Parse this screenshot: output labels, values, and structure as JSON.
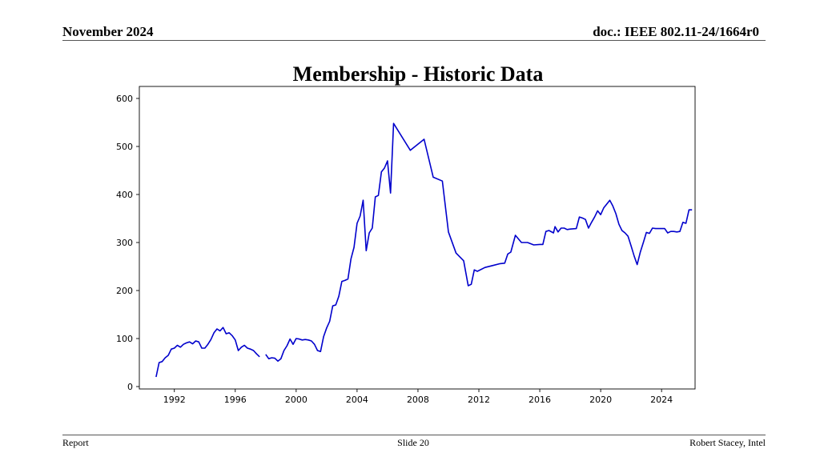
{
  "header": {
    "date": "November 2024",
    "doc_id": "doc.: IEEE 802.11-24/1664r0"
  },
  "slide_title": "Membership - Historic Data",
  "footer": {
    "left": "Report",
    "center": "Slide 20",
    "right": "Robert Stacey, Intel"
  },
  "colors": {
    "line": "#0000cc"
  },
  "chart_data": {
    "type": "line",
    "title": "",
    "xlabel": "",
    "ylabel": "",
    "xlim": [
      1989.7,
      2026.2
    ],
    "ylim": [
      -5,
      625
    ],
    "xticks": [
      1992,
      1996,
      2000,
      2004,
      2008,
      2012,
      2016,
      2020,
      2024
    ],
    "yticks": [
      0,
      100,
      200,
      300,
      400,
      500,
      600
    ],
    "grid": false,
    "series": [
      {
        "name": "",
        "segments": [
          [
            [
              1990.8,
              20
            ],
            [
              1991.0,
              50
            ],
            [
              1991.2,
              52
            ],
            [
              1991.4,
              60
            ],
            [
              1991.6,
              65
            ],
            [
              1991.8,
              78
            ],
            [
              1992.0,
              80
            ],
            [
              1992.2,
              86
            ],
            [
              1992.4,
              82
            ],
            [
              1992.6,
              88
            ],
            [
              1992.8,
              91
            ],
            [
              1993.0,
              93
            ],
            [
              1993.2,
              89
            ],
            [
              1993.4,
              95
            ],
            [
              1993.6,
              93
            ],
            [
              1993.8,
              80
            ],
            [
              1994.0,
              80
            ],
            [
              1994.2,
              88
            ],
            [
              1994.4,
              98
            ],
            [
              1994.6,
              112
            ],
            [
              1994.8,
              120
            ],
            [
              1995.0,
              116
            ],
            [
              1995.2,
              123
            ],
            [
              1995.4,
              110
            ],
            [
              1995.6,
              112
            ],
            [
              1995.8,
              106
            ],
            [
              1996.0,
              97
            ],
            [
              1996.2,
              75
            ],
            [
              1996.4,
              82
            ],
            [
              1996.6,
              86
            ],
            [
              1996.8,
              80
            ],
            [
              1997.0,
              78
            ],
            [
              1997.2,
              75
            ],
            [
              1997.4,
              68
            ],
            [
              1997.6,
              62
            ]
          ],
          [
            [
              1998.0,
              67
            ],
            [
              1998.2,
              58
            ],
            [
              1998.4,
              60
            ],
            [
              1998.6,
              59
            ],
            [
              1998.8,
              53
            ],
            [
              1999.0,
              58
            ],
            [
              1999.2,
              75
            ],
            [
              1999.4,
              85
            ],
            [
              1999.6,
              99
            ],
            [
              1999.8,
              88
            ],
            [
              2000.0,
              100
            ],
            [
              2000.2,
              99
            ],
            [
              2000.4,
              97
            ],
            [
              2000.6,
              98
            ],
            [
              2000.8,
              97
            ],
            [
              2001.0,
              95
            ],
            [
              2001.2,
              88
            ],
            [
              2001.4,
              75
            ],
            [
              2001.6,
              73
            ],
            [
              2001.8,
              104
            ],
            [
              2002.0,
              122
            ],
            [
              2002.2,
              136
            ],
            [
              2002.4,
              168
            ],
            [
              2002.6,
              170
            ],
            [
              2002.8,
              188
            ],
            [
              2003.0,
              219
            ],
            [
              2003.2,
              221
            ],
            [
              2003.4,
              224
            ],
            [
              2003.6,
              266
            ],
            [
              2003.8,
              290
            ],
            [
              2004.0,
              340
            ],
            [
              2004.2,
              355
            ],
            [
              2004.4,
              388
            ],
            [
              2004.6,
              283
            ],
            [
              2004.8,
              320
            ],
            [
              2005.0,
              330
            ],
            [
              2005.2,
              395
            ],
            [
              2005.4,
              398
            ],
            [
              2005.6,
              447
            ],
            [
              2005.8,
              455
            ],
            [
              2006.0,
              470
            ],
            [
              2006.2,
              403
            ],
            [
              2006.4,
              548
            ],
            [
              2007.5,
              492
            ],
            [
              2008.4,
              515
            ],
            [
              2009.0,
              436
            ],
            [
              2009.6,
              428
            ],
            [
              2010.0,
              322
            ],
            [
              2010.5,
              278
            ],
            [
              2011.0,
              262
            ],
            [
              2011.3,
              210
            ],
            [
              2011.5,
              213
            ],
            [
              2011.7,
              243
            ],
            [
              2011.9,
              240
            ],
            [
              2012.4,
              248
            ],
            [
              2012.9,
              252
            ],
            [
              2013.4,
              256
            ],
            [
              2013.7,
              257
            ],
            [
              2013.9,
              276
            ],
            [
              2014.1,
              280
            ],
            [
              2014.4,
              315
            ],
            [
              2014.8,
              300
            ],
            [
              2015.2,
              300
            ],
            [
              2015.6,
              295
            ],
            [
              2016.0,
              296
            ],
            [
              2016.2,
              296
            ],
            [
              2016.4,
              323
            ],
            [
              2016.6,
              325
            ],
            [
              2016.9,
              320
            ],
            [
              2017.0,
              333
            ],
            [
              2017.2,
              322
            ],
            [
              2017.4,
              330
            ],
            [
              2017.6,
              330
            ],
            [
              2017.8,
              327
            ],
            [
              2018.0,
              328
            ],
            [
              2018.4,
              329
            ],
            [
              2018.6,
              353
            ],
            [
              2018.8,
              351
            ],
            [
              2019.0,
              348
            ],
            [
              2019.2,
              330
            ],
            [
              2019.4,
              342
            ],
            [
              2019.6,
              353
            ],
            [
              2019.8,
              366
            ],
            [
              2020.0,
              358
            ],
            [
              2020.2,
              372
            ],
            [
              2020.4,
              380
            ],
            [
              2020.6,
              388
            ],
            [
              2020.8,
              376
            ],
            [
              2021.0,
              360
            ],
            [
              2021.2,
              338
            ],
            [
              2021.4,
              325
            ],
            [
              2021.6,
              320
            ],
            [
              2021.8,
              313
            ],
            [
              2022.0,
              293
            ],
            [
              2022.2,
              272
            ],
            [
              2022.4,
              254
            ],
            [
              2022.6,
              280
            ],
            [
              2022.8,
              300
            ],
            [
              2023.0,
              321
            ],
            [
              2023.2,
              319
            ],
            [
              2023.4,
              330
            ],
            [
              2023.6,
              329
            ],
            [
              2023.8,
              329
            ],
            [
              2024.0,
              329
            ],
            [
              2024.2,
              329
            ],
            [
              2024.4,
              320
            ],
            [
              2024.6,
              323
            ],
            [
              2024.8,
              323
            ],
            [
              2025.0,
              322
            ],
            [
              2025.2,
              323
            ],
            [
              2025.4,
              342
            ],
            [
              2025.6,
              340
            ],
            [
              2025.8,
              368
            ],
            [
              2026.0,
              368
            ]
          ]
        ]
      }
    ]
  }
}
